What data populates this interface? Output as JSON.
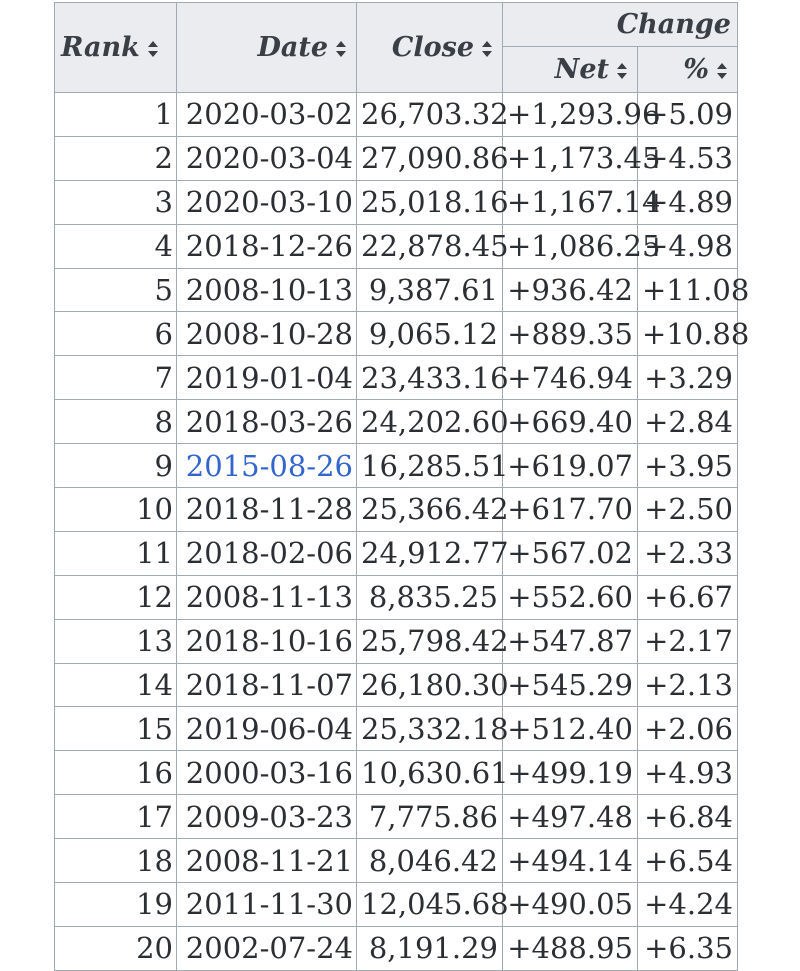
{
  "headers": {
    "rank": "Rank",
    "date": "Date",
    "close": "Close",
    "change": "Change",
    "net": "Net",
    "pct": "%"
  },
  "rows": [
    {
      "rank": "1",
      "date": "2020-03-02",
      "close": "26,703.32",
      "net": "+1,293.96",
      "pct": "+5.09",
      "link": false
    },
    {
      "rank": "2",
      "date": "2020-03-04",
      "close": "27,090.86",
      "net": "+1,173.45",
      "pct": "+4.53",
      "link": false
    },
    {
      "rank": "3",
      "date": "2020-03-10",
      "close": "25,018.16",
      "net": "+1,167.14",
      "pct": "+4.89",
      "link": false
    },
    {
      "rank": "4",
      "date": "2018-12-26",
      "close": "22,878.45",
      "net": "+1,086.25",
      "pct": "+4.98",
      "link": false
    },
    {
      "rank": "5",
      "date": "2008-10-13",
      "close": "9,387.61",
      "net": "+936.42",
      "pct": "+11.08",
      "link": false
    },
    {
      "rank": "6",
      "date": "2008-10-28",
      "close": "9,065.12",
      "net": "+889.35",
      "pct": "+10.88",
      "link": false
    },
    {
      "rank": "7",
      "date": "2019-01-04",
      "close": "23,433.16",
      "net": "+746.94",
      "pct": "+3.29",
      "link": false
    },
    {
      "rank": "8",
      "date": "2018-03-26",
      "close": "24,202.60",
      "net": "+669.40",
      "pct": "+2.84",
      "link": false
    },
    {
      "rank": "9",
      "date": "2015-08-26",
      "close": "16,285.51",
      "net": "+619.07",
      "pct": "+3.95",
      "link": true
    },
    {
      "rank": "10",
      "date": "2018-11-28",
      "close": "25,366.42",
      "net": "+617.70",
      "pct": "+2.50",
      "link": false
    },
    {
      "rank": "11",
      "date": "2018-02-06",
      "close": "24,912.77",
      "net": "+567.02",
      "pct": "+2.33",
      "link": false
    },
    {
      "rank": "12",
      "date": "2008-11-13",
      "close": "8,835.25",
      "net": "+552.60",
      "pct": "+6.67",
      "link": false
    },
    {
      "rank": "13",
      "date": "2018-10-16",
      "close": "25,798.42",
      "net": "+547.87",
      "pct": "+2.17",
      "link": false
    },
    {
      "rank": "14",
      "date": "2018-11-07",
      "close": "26,180.30",
      "net": "+545.29",
      "pct": "+2.13",
      "link": false
    },
    {
      "rank": "15",
      "date": "2019-06-04",
      "close": "25,332.18",
      "net": "+512.40",
      "pct": "+2.06",
      "link": false
    },
    {
      "rank": "16",
      "date": "2000-03-16",
      "close": "10,630.61",
      "net": "+499.19",
      "pct": "+4.93",
      "link": false
    },
    {
      "rank": "17",
      "date": "2009-03-23",
      "close": "7,775.86",
      "net": "+497.48",
      "pct": "+6.84",
      "link": false
    },
    {
      "rank": "18",
      "date": "2008-11-21",
      "close": "8,046.42",
      "net": "+494.14",
      "pct": "+6.54",
      "link": false
    },
    {
      "rank": "19",
      "date": "2011-11-30",
      "close": "12,045.68",
      "net": "+490.05",
      "pct": "+4.24",
      "link": false
    },
    {
      "rank": "20",
      "date": "2002-07-24",
      "close": "8,191.29",
      "net": "+488.95",
      "pct": "+6.35",
      "link": false
    }
  ],
  "colors": {
    "header_bg": "#eaecf0",
    "border": "#a2a9b1",
    "link": "#3366cc",
    "text": "#2b2f33"
  },
  "icons": {
    "sort": "sort-arrows-icon"
  }
}
